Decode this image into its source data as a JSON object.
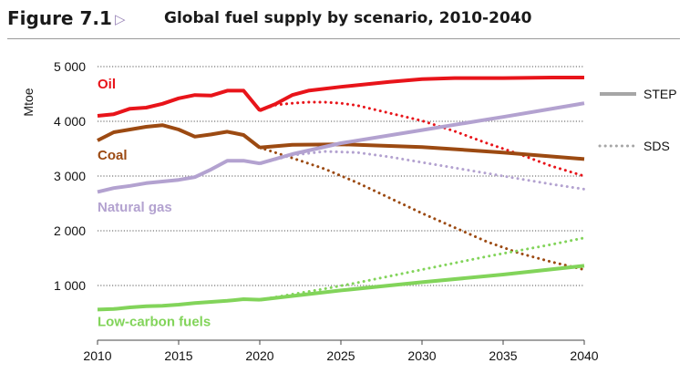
{
  "header": {
    "figure_number": "Figure 7.1",
    "arrow_glyph": "▷",
    "title": "Global fuel supply by scenario, 2010-2040"
  },
  "chart_data": {
    "type": "line",
    "ylabel": "Mtoe",
    "xlabel": "",
    "xlim": [
      2010,
      2040
    ],
    "ylim": [
      0,
      5000
    ],
    "x_ticks": [
      2010,
      2015,
      2020,
      2025,
      2030,
      2035,
      2040
    ],
    "y_ticks": [
      1000,
      2000,
      3000,
      4000,
      5000
    ],
    "y_tick_labels": [
      "1 000",
      "2 000",
      "3 000",
      "4 000",
      "5 000"
    ],
    "grid": "horizontal dotted",
    "legend": {
      "placement": "right",
      "entries": [
        {
          "label": "STEP",
          "style": "solid"
        },
        {
          "label": "SDS",
          "style": "dotted"
        }
      ]
    },
    "series": [
      {
        "name": "Oil",
        "color": "#e8141a",
        "history": {
          "x": [
            2010,
            2011,
            2012,
            2013,
            2014,
            2015,
            2016,
            2017,
            2018,
            2019,
            2020
          ],
          "y": [
            4100,
            4130,
            4230,
            4250,
            4320,
            4420,
            4480,
            4470,
            4560,
            4560,
            4200
          ]
        },
        "step": {
          "x": [
            2020,
            2021,
            2022,
            2023,
            2025,
            2028,
            2030,
            2032,
            2035,
            2038,
            2040
          ],
          "y": [
            4200,
            4320,
            4480,
            4560,
            4630,
            4720,
            4770,
            4790,
            4790,
            4800,
            4800
          ]
        },
        "sds": {
          "x": [
            2020,
            2021,
            2022,
            2023,
            2024,
            2025,
            2026,
            2028,
            2030,
            2032,
            2034,
            2036,
            2038,
            2040
          ],
          "y": [
            4200,
            4300,
            4330,
            4350,
            4350,
            4330,
            4290,
            4150,
            4010,
            3820,
            3600,
            3400,
            3180,
            3000
          ]
        }
      },
      {
        "name": "Coal",
        "color": "#9c4a12",
        "history": {
          "x": [
            2010,
            2011,
            2012,
            2013,
            2014,
            2015,
            2016,
            2017,
            2018,
            2019,
            2020
          ],
          "y": [
            3650,
            3800,
            3850,
            3900,
            3930,
            3850,
            3720,
            3760,
            3810,
            3750,
            3520
          ]
        },
        "step": {
          "x": [
            2020,
            2022,
            2025,
            2030,
            2035,
            2040
          ],
          "y": [
            3520,
            3570,
            3580,
            3530,
            3430,
            3310
          ]
        },
        "sds": {
          "x": [
            2020,
            2022,
            2024,
            2026,
            2028,
            2030,
            2032,
            2034,
            2036,
            2038,
            2040
          ],
          "y": [
            3520,
            3330,
            3130,
            2880,
            2600,
            2320,
            2060,
            1800,
            1590,
            1430,
            1290
          ]
        }
      },
      {
        "name": "Natural gas",
        "color": "#b3a2d0",
        "history": {
          "x": [
            2010,
            2011,
            2012,
            2013,
            2014,
            2015,
            2016,
            2017,
            2018,
            2019,
            2020
          ],
          "y": [
            2710,
            2780,
            2820,
            2870,
            2900,
            2930,
            2980,
            3120,
            3280,
            3280,
            3230
          ]
        },
        "step": {
          "x": [
            2020,
            2022,
            2025,
            2030,
            2035,
            2040
          ],
          "y": [
            3230,
            3400,
            3600,
            3840,
            4080,
            4330
          ]
        },
        "sds": {
          "x": [
            2020,
            2022,
            2024,
            2026,
            2028,
            2030,
            2032,
            2034,
            2036,
            2038,
            2040
          ],
          "y": [
            3230,
            3380,
            3450,
            3430,
            3350,
            3250,
            3150,
            3050,
            2950,
            2850,
            2760
          ]
        }
      },
      {
        "name": "Low-carbon fuels",
        "color": "#82d45a",
        "history": {
          "x": [
            2010,
            2011,
            2012,
            2013,
            2014,
            2015,
            2016,
            2017,
            2018,
            2019,
            2020
          ],
          "y": [
            560,
            570,
            600,
            620,
            630,
            650,
            680,
            700,
            720,
            750,
            740
          ]
        },
        "step": {
          "x": [
            2020,
            2025,
            2030,
            2035,
            2040
          ],
          "y": [
            740,
            910,
            1060,
            1200,
            1360
          ]
        },
        "sds": {
          "x": [
            2020,
            2022,
            2024,
            2026,
            2028,
            2030,
            2032,
            2034,
            2036,
            2038,
            2040
          ],
          "y": [
            740,
            840,
            940,
            1050,
            1170,
            1290,
            1410,
            1530,
            1640,
            1750,
            1870
          ]
        }
      }
    ],
    "series_label_positions": {
      "Oil": {
        "x": 2010,
        "y": 4600
      },
      "Coal": {
        "x": 2010,
        "y": 3300
      },
      "Natural gas": {
        "x": 2010,
        "y": 2350
      },
      "Low-carbon fuels": {
        "x": 2010,
        "y": 260
      }
    }
  }
}
